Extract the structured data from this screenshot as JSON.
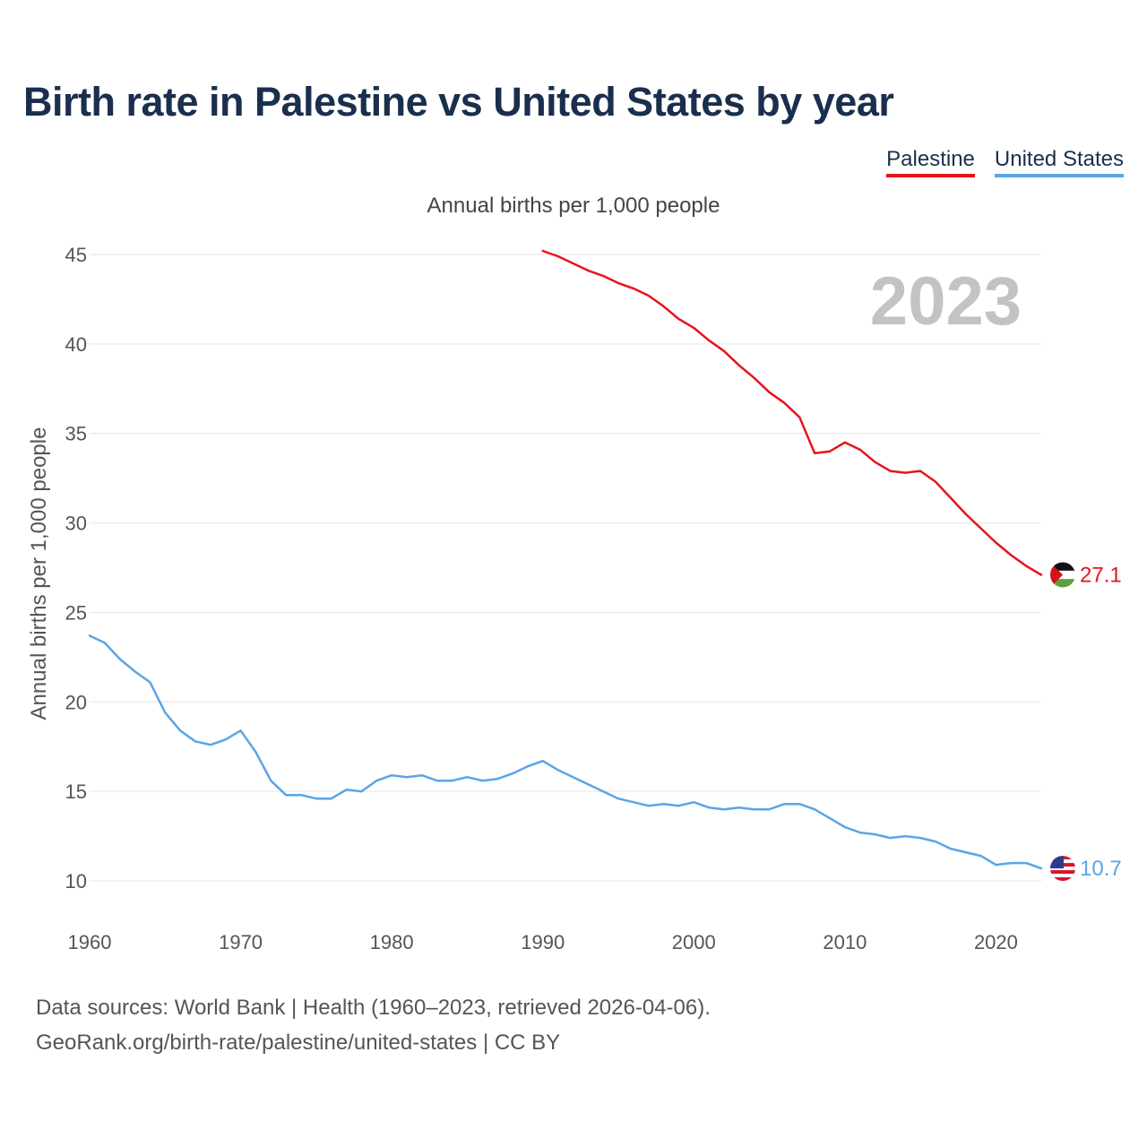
{
  "header": {
    "title": "Birth rate in Palestine vs United States by year",
    "subtitle": "Annual births per 1,000 people"
  },
  "legend": {
    "palestine": "Palestine",
    "united_states": "United States"
  },
  "footer": {
    "line1": "Data sources: World Bank | Health (1960–2023, retrieved 2026-04-06).",
    "line2": "GeoRank.org/birth-rate/palestine/united-states | CC BY"
  },
  "colors": {
    "palestine": "#e8131a",
    "united_states": "#5aa5e6",
    "title": "#1a2f4d",
    "year_label": "#c3c3c3"
  },
  "chart_data": {
    "type": "line",
    "title": "Birth rate in Palestine vs United States by year",
    "ylabel": "Annual births per 1,000 people",
    "xlabel": "",
    "year_label": "2023",
    "xlim": [
      1960,
      2023
    ],
    "ylim": [
      8,
      46.5
    ],
    "x_ticks": [
      1960,
      1970,
      1980,
      1990,
      2000,
      2010,
      2020
    ],
    "y_ticks": [
      10,
      15,
      20,
      25,
      30,
      35,
      40,
      45
    ],
    "grid": true,
    "legend_position": "top-right",
    "series": [
      {
        "name": "Palestine",
        "color": "#e8131a",
        "end_label": "27.1",
        "x": [
          1990,
          1991,
          1992,
          1993,
          1994,
          1995,
          1996,
          1997,
          1998,
          1999,
          2000,
          2001,
          2002,
          2003,
          2004,
          2005,
          2006,
          2007,
          2008,
          2009,
          2010,
          2011,
          2012,
          2013,
          2014,
          2015,
          2016,
          2017,
          2018,
          2019,
          2020,
          2021,
          2022,
          2023
        ],
        "values": [
          45.2,
          44.9,
          44.5,
          44.1,
          43.8,
          43.4,
          43.1,
          42.7,
          42.1,
          41.4,
          40.9,
          40.2,
          39.6,
          38.8,
          38.1,
          37.3,
          36.7,
          35.9,
          33.9,
          34.0,
          34.5,
          34.1,
          33.4,
          32.9,
          32.8,
          32.9,
          32.3,
          31.4,
          30.5,
          29.7,
          28.9,
          28.2,
          27.6,
          27.1
        ]
      },
      {
        "name": "United States",
        "color": "#5aa5e6",
        "end_label": "10.7",
        "x": [
          1960,
          1961,
          1962,
          1963,
          1964,
          1965,
          1966,
          1967,
          1968,
          1969,
          1970,
          1971,
          1972,
          1973,
          1974,
          1975,
          1976,
          1977,
          1978,
          1979,
          1980,
          1981,
          1982,
          1983,
          1984,
          1985,
          1986,
          1987,
          1988,
          1989,
          1990,
          1991,
          1992,
          1993,
          1994,
          1995,
          1996,
          1997,
          1998,
          1999,
          2000,
          2001,
          2002,
          2003,
          2004,
          2005,
          2006,
          2007,
          2008,
          2009,
          2010,
          2011,
          2012,
          2013,
          2014,
          2015,
          2016,
          2017,
          2018,
          2019,
          2020,
          2021,
          2022,
          2023
        ],
        "values": [
          23.7,
          23.3,
          22.4,
          21.7,
          21.1,
          19.4,
          18.4,
          17.8,
          17.6,
          17.9,
          18.4,
          17.2,
          15.6,
          14.8,
          14.8,
          14.6,
          14.6,
          15.1,
          15.0,
          15.6,
          15.9,
          15.8,
          15.9,
          15.6,
          15.6,
          15.8,
          15.6,
          15.7,
          16.0,
          16.4,
          16.7,
          16.2,
          15.8,
          15.4,
          15.0,
          14.6,
          14.4,
          14.2,
          14.3,
          14.2,
          14.4,
          14.1,
          14.0,
          14.1,
          14.0,
          14.0,
          14.3,
          14.3,
          14.0,
          13.5,
          13.0,
          12.7,
          12.6,
          12.4,
          12.5,
          12.4,
          12.2,
          11.8,
          11.6,
          11.4,
          10.9,
          11.0,
          11.0,
          10.7
        ]
      }
    ]
  }
}
